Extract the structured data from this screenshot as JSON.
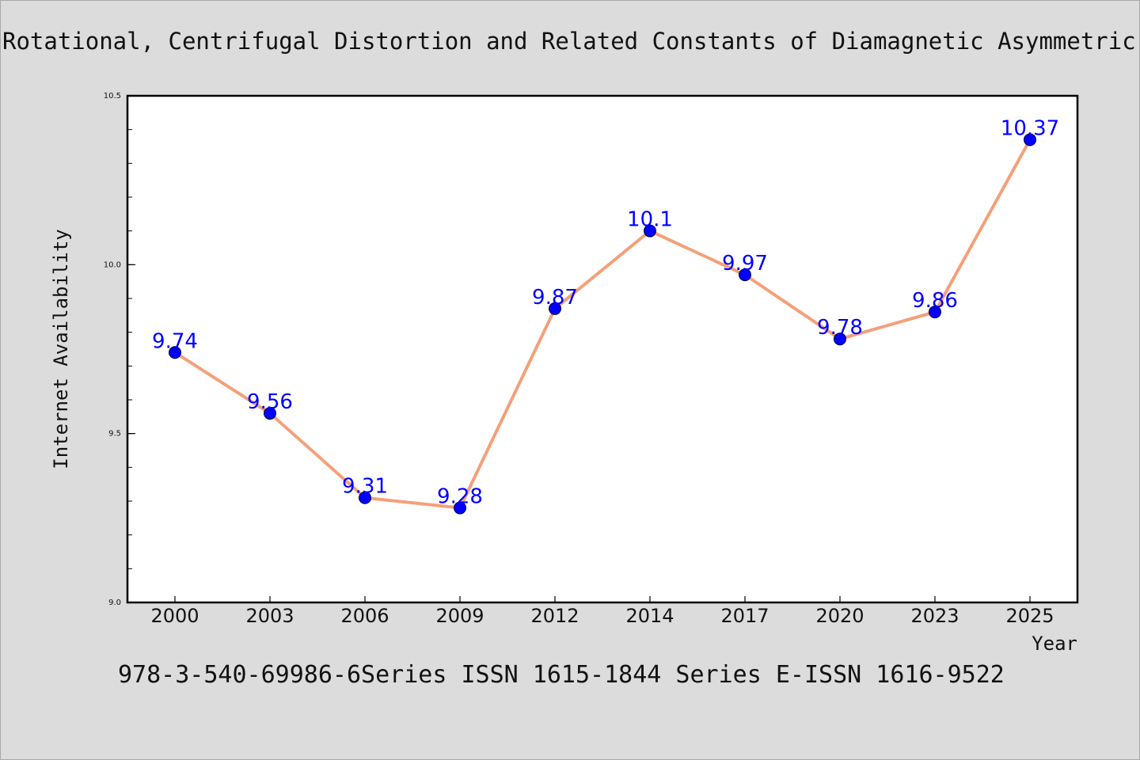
{
  "title": "Rotational, Centrifugal Distortion and Related Constants of Diamagnetic Asymmetric Top Molecules",
  "footer": "978-3-540-69986-6Series ISSN 1615-1844 Series E-ISSN 1616-9522",
  "colors": {
    "background": "#dcdcdc",
    "line": "#f4a07a",
    "marker": "#0000ff",
    "data_label": "#0000ff",
    "axes": "#000000"
  },
  "chart_data": {
    "type": "line",
    "title": "Rotational, Centrifugal Distortion and Related Constants of Diamagnetic Asymmetric Top Molecules",
    "xlabel": "Year",
    "ylabel": "Internet Availability",
    "categories": [
      "2000",
      "2003",
      "2006",
      "2009",
      "2012",
      "2014",
      "2017",
      "2020",
      "2023",
      "2025"
    ],
    "series": [
      {
        "values": [
          9.74,
          9.56,
          9.31,
          9.28,
          9.87,
          10.1,
          9.97,
          9.78,
          9.86,
          10.37
        ],
        "labels": [
          "9.74",
          "9.56",
          "9.31",
          "9.28",
          "9.87",
          "10.1",
          "9.97",
          "9.78",
          "9.86",
          "10.37"
        ]
      }
    ],
    "ylim": [
      9.0,
      10.5
    ],
    "yticks": [
      9.0,
      9.5,
      10.0,
      10.5
    ],
    "ytick_labels": [
      "9.0",
      "9.5",
      "10.0",
      "10.5"
    ],
    "grid": false,
    "legend": "none"
  }
}
